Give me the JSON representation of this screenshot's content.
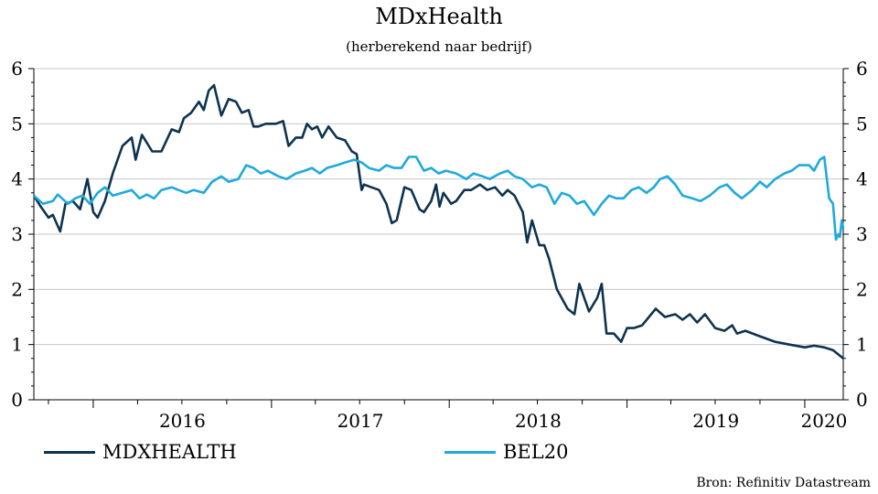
{
  "chart_data": {
    "type": "line",
    "title": "MDxHealth",
    "subtitle": "(herberekend naar bedrijf)",
    "ylim": [
      0,
      6
    ],
    "y_ticks": [
      0,
      1,
      2,
      3,
      4,
      5,
      6
    ],
    "x_range": [
      "2015-09-01",
      "2020-03-20"
    ],
    "x_tick_labels": [
      "2016",
      "2017",
      "2018",
      "2019",
      "2020"
    ],
    "grid": true,
    "legend_position": "bottom",
    "source": "Bron: Refinitiv Datastream",
    "series": [
      {
        "name": "MDXHEALTH",
        "color": "#0d3350",
        "points": [
          [
            "2015-09-01",
            3.7
          ],
          [
            "2015-09-15",
            3.5
          ],
          [
            "2015-10-01",
            3.3
          ],
          [
            "2015-10-10",
            3.35
          ],
          [
            "2015-10-25",
            3.05
          ],
          [
            "2015-11-05",
            3.55
          ],
          [
            "2015-11-20",
            3.6
          ],
          [
            "2015-12-05",
            3.45
          ],
          [
            "2015-12-20",
            4.0
          ],
          [
            "2016-01-01",
            3.4
          ],
          [
            "2016-01-10",
            3.3
          ],
          [
            "2016-01-25",
            3.6
          ],
          [
            "2016-02-10",
            4.1
          ],
          [
            "2016-03-01",
            4.6
          ],
          [
            "2016-03-20",
            4.75
          ],
          [
            "2016-03-28",
            4.35
          ],
          [
            "2016-04-10",
            4.8
          ],
          [
            "2016-05-01",
            4.5
          ],
          [
            "2016-05-20",
            4.5
          ],
          [
            "2016-06-10",
            4.9
          ],
          [
            "2016-06-25",
            4.85
          ],
          [
            "2016-07-05",
            5.1
          ],
          [
            "2016-07-20",
            5.2
          ],
          [
            "2016-08-05",
            5.4
          ],
          [
            "2016-08-15",
            5.25
          ],
          [
            "2016-08-25",
            5.6
          ],
          [
            "2016-09-05",
            5.7
          ],
          [
            "2016-09-20",
            5.15
          ],
          [
            "2016-10-05",
            5.45
          ],
          [
            "2016-10-20",
            5.4
          ],
          [
            "2016-11-01",
            5.2
          ],
          [
            "2016-11-15",
            5.25
          ],
          [
            "2016-11-25",
            4.95
          ],
          [
            "2016-12-05",
            4.95
          ],
          [
            "2016-12-20",
            5.0
          ],
          [
            "2017-01-10",
            5.0
          ],
          [
            "2017-01-25",
            5.05
          ],
          [
            "2017-02-05",
            4.6
          ],
          [
            "2017-02-20",
            4.75
          ],
          [
            "2017-03-05",
            4.75
          ],
          [
            "2017-03-15",
            5.0
          ],
          [
            "2017-03-25",
            4.9
          ],
          [
            "2017-04-05",
            4.95
          ],
          [
            "2017-04-15",
            4.75
          ],
          [
            "2017-04-28",
            4.95
          ],
          [
            "2017-05-15",
            4.75
          ],
          [
            "2017-06-01",
            4.7
          ],
          [
            "2017-06-15",
            4.5
          ],
          [
            "2017-06-25",
            4.45
          ],
          [
            "2017-07-05",
            3.8
          ],
          [
            "2017-07-10",
            3.9
          ],
          [
            "2017-07-25",
            3.85
          ],
          [
            "2017-08-10",
            3.8
          ],
          [
            "2017-08-25",
            3.55
          ],
          [
            "2017-09-05",
            3.2
          ],
          [
            "2017-09-15",
            3.25
          ],
          [
            "2017-10-01",
            3.85
          ],
          [
            "2017-10-15",
            3.8
          ],
          [
            "2017-11-01",
            3.45
          ],
          [
            "2017-11-10",
            3.4
          ],
          [
            "2017-11-25",
            3.6
          ],
          [
            "2017-12-05",
            3.9
          ],
          [
            "2017-12-12",
            3.5
          ],
          [
            "2017-12-20",
            3.75
          ],
          [
            "2018-01-05",
            3.55
          ],
          [
            "2018-01-15",
            3.6
          ],
          [
            "2018-02-01",
            3.8
          ],
          [
            "2018-02-15",
            3.8
          ],
          [
            "2018-03-05",
            3.9
          ],
          [
            "2018-03-20",
            3.8
          ],
          [
            "2018-04-05",
            3.85
          ],
          [
            "2018-04-20",
            3.7
          ],
          [
            "2018-05-01",
            3.8
          ],
          [
            "2018-05-15",
            3.7
          ],
          [
            "2018-06-01",
            3.4
          ],
          [
            "2018-06-10",
            2.85
          ],
          [
            "2018-06-20",
            3.25
          ],
          [
            "2018-07-05",
            2.8
          ],
          [
            "2018-07-15",
            2.8
          ],
          [
            "2018-07-25",
            2.55
          ],
          [
            "2018-08-10",
            2.0
          ],
          [
            "2018-09-01",
            1.65
          ],
          [
            "2018-09-15",
            1.55
          ],
          [
            "2018-09-25",
            2.1
          ],
          [
            "2018-10-15",
            1.6
          ],
          [
            "2018-11-01",
            1.85
          ],
          [
            "2018-11-10",
            2.1
          ],
          [
            "2018-11-20",
            1.2
          ],
          [
            "2018-12-05",
            1.2
          ],
          [
            "2018-12-20",
            1.05
          ],
          [
            "2019-01-01",
            1.3
          ],
          [
            "2019-01-15",
            1.3
          ],
          [
            "2019-02-01",
            1.35
          ],
          [
            "2019-03-01",
            1.65
          ],
          [
            "2019-03-20",
            1.5
          ],
          [
            "2019-04-10",
            1.55
          ],
          [
            "2019-04-25",
            1.45
          ],
          [
            "2019-05-10",
            1.55
          ],
          [
            "2019-05-25",
            1.4
          ],
          [
            "2019-06-10",
            1.55
          ],
          [
            "2019-07-01",
            1.3
          ],
          [
            "2019-07-20",
            1.25
          ],
          [
            "2019-08-05",
            1.35
          ],
          [
            "2019-08-15",
            1.2
          ],
          [
            "2019-09-01",
            1.25
          ],
          [
            "2019-10-01",
            1.15
          ],
          [
            "2019-11-01",
            1.05
          ],
          [
            "2019-12-01",
            1.0
          ],
          [
            "2020-01-01",
            0.95
          ],
          [
            "2020-01-20",
            0.98
          ],
          [
            "2020-02-10",
            0.95
          ],
          [
            "2020-02-28",
            0.9
          ],
          [
            "2020-03-20",
            0.75
          ]
        ]
      },
      {
        "name": "BEL20",
        "color": "#1eaadc",
        "points": [
          [
            "2015-09-01",
            3.7
          ],
          [
            "2015-09-20",
            3.55
          ],
          [
            "2015-10-10",
            3.6
          ],
          [
            "2015-10-20",
            3.72
          ],
          [
            "2015-11-10",
            3.55
          ],
          [
            "2015-11-25",
            3.65
          ],
          [
            "2015-12-10",
            3.7
          ],
          [
            "2015-12-25",
            3.55
          ],
          [
            "2016-01-10",
            3.75
          ],
          [
            "2016-01-25",
            3.85
          ],
          [
            "2016-02-10",
            3.7
          ],
          [
            "2016-03-01",
            3.75
          ],
          [
            "2016-03-20",
            3.8
          ],
          [
            "2016-04-05",
            3.65
          ],
          [
            "2016-04-20",
            3.72
          ],
          [
            "2016-05-05",
            3.65
          ],
          [
            "2016-05-20",
            3.8
          ],
          [
            "2016-06-10",
            3.85
          ],
          [
            "2016-06-24",
            3.8
          ],
          [
            "2016-07-10",
            3.75
          ],
          [
            "2016-07-25",
            3.8
          ],
          [
            "2016-08-15",
            3.75
          ],
          [
            "2016-09-01",
            3.95
          ],
          [
            "2016-09-20",
            4.05
          ],
          [
            "2016-10-05",
            3.95
          ],
          [
            "2016-10-25",
            4.0
          ],
          [
            "2016-11-10",
            4.25
          ],
          [
            "2016-11-25",
            4.2
          ],
          [
            "2016-12-10",
            4.1
          ],
          [
            "2016-12-25",
            4.15
          ],
          [
            "2017-01-15",
            4.05
          ],
          [
            "2017-02-01",
            4.0
          ],
          [
            "2017-02-20",
            4.1
          ],
          [
            "2017-03-10",
            4.15
          ],
          [
            "2017-03-25",
            4.2
          ],
          [
            "2017-04-10",
            4.1
          ],
          [
            "2017-04-25",
            4.2
          ],
          [
            "2017-05-15",
            4.25
          ],
          [
            "2017-06-01",
            4.3
          ],
          [
            "2017-06-20",
            4.35
          ],
          [
            "2017-07-05",
            4.3
          ],
          [
            "2017-07-20",
            4.2
          ],
          [
            "2017-08-10",
            4.15
          ],
          [
            "2017-08-25",
            4.25
          ],
          [
            "2017-09-10",
            4.2
          ],
          [
            "2017-09-25",
            4.2
          ],
          [
            "2017-10-10",
            4.4
          ],
          [
            "2017-10-25",
            4.4
          ],
          [
            "2017-11-10",
            4.15
          ],
          [
            "2017-11-25",
            4.2
          ],
          [
            "2017-12-10",
            4.1
          ],
          [
            "2017-12-25",
            4.15
          ],
          [
            "2018-01-15",
            4.1
          ],
          [
            "2018-02-05",
            4.0
          ],
          [
            "2018-02-20",
            4.1
          ],
          [
            "2018-03-10",
            4.05
          ],
          [
            "2018-03-25",
            4.0
          ],
          [
            "2018-04-15",
            4.1
          ],
          [
            "2018-05-01",
            4.15
          ],
          [
            "2018-05-15",
            4.05
          ],
          [
            "2018-06-01",
            4.0
          ],
          [
            "2018-06-20",
            3.85
          ],
          [
            "2018-07-05",
            3.9
          ],
          [
            "2018-07-20",
            3.85
          ],
          [
            "2018-08-05",
            3.55
          ],
          [
            "2018-08-20",
            3.75
          ],
          [
            "2018-09-05",
            3.7
          ],
          [
            "2018-09-20",
            3.55
          ],
          [
            "2018-10-05",
            3.6
          ],
          [
            "2018-10-25",
            3.35
          ],
          [
            "2018-11-10",
            3.55
          ],
          [
            "2018-11-25",
            3.7
          ],
          [
            "2018-12-10",
            3.65
          ],
          [
            "2018-12-25",
            3.65
          ],
          [
            "2019-01-10",
            3.8
          ],
          [
            "2019-01-25",
            3.85
          ],
          [
            "2019-02-10",
            3.75
          ],
          [
            "2019-02-25",
            3.85
          ],
          [
            "2019-03-10",
            4.0
          ],
          [
            "2019-03-25",
            4.05
          ],
          [
            "2019-04-10",
            3.9
          ],
          [
            "2019-04-25",
            3.7
          ],
          [
            "2019-05-15",
            3.65
          ],
          [
            "2019-06-01",
            3.6
          ],
          [
            "2019-06-20",
            3.7
          ],
          [
            "2019-07-10",
            3.85
          ],
          [
            "2019-07-25",
            3.9
          ],
          [
            "2019-08-10",
            3.75
          ],
          [
            "2019-08-25",
            3.65
          ],
          [
            "2019-09-15",
            3.8
          ],
          [
            "2019-10-01",
            3.95
          ],
          [
            "2019-10-15",
            3.85
          ],
          [
            "2019-11-01",
            4.0
          ],
          [
            "2019-11-20",
            4.1
          ],
          [
            "2019-12-05",
            4.15
          ],
          [
            "2019-12-20",
            4.25
          ],
          [
            "2020-01-10",
            4.25
          ],
          [
            "2020-01-20",
            4.15
          ],
          [
            "2020-02-01",
            4.35
          ],
          [
            "2020-02-10",
            4.4
          ],
          [
            "2020-02-20",
            3.65
          ],
          [
            "2020-02-28",
            3.55
          ],
          [
            "2020-03-05",
            2.9
          ],
          [
            "2020-03-10",
            3.0
          ],
          [
            "2020-03-13",
            2.95
          ],
          [
            "2020-03-17",
            3.25
          ],
          [
            "2020-03-20",
            3.1
          ]
        ]
      }
    ]
  }
}
